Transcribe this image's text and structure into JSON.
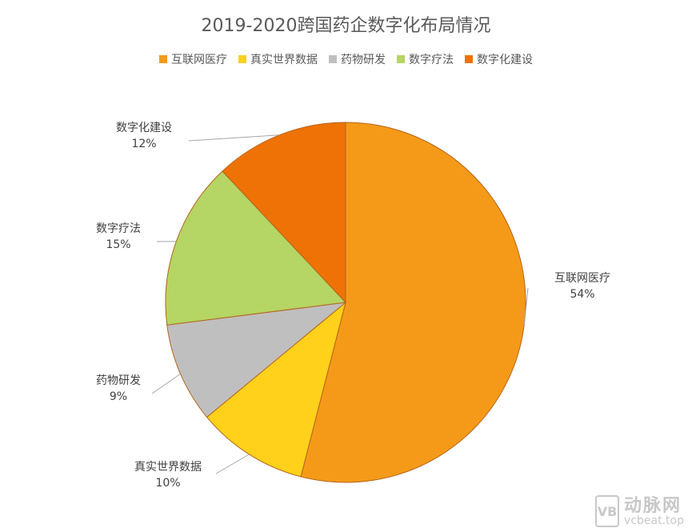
{
  "chart_data": {
    "type": "pie",
    "title": "2019-2020跨国药企数字化布局情况",
    "legend_position": "top",
    "categories": [
      "互联网医疗",
      "真实世界数据",
      "药物研发",
      "数字疗法",
      "数字化建设"
    ],
    "values": [
      54,
      10,
      9,
      15,
      12
    ],
    "value_labels": [
      "54%",
      "10%",
      "9%",
      "15%",
      "12%"
    ],
    "colors": [
      "#F59A18",
      "#FFD11A",
      "#C0BFBF",
      "#B5D564",
      "#EE7205"
    ]
  },
  "watermark": {
    "logo_letters": "VB",
    "name": "动脉网",
    "url": "vcbeat.top"
  }
}
